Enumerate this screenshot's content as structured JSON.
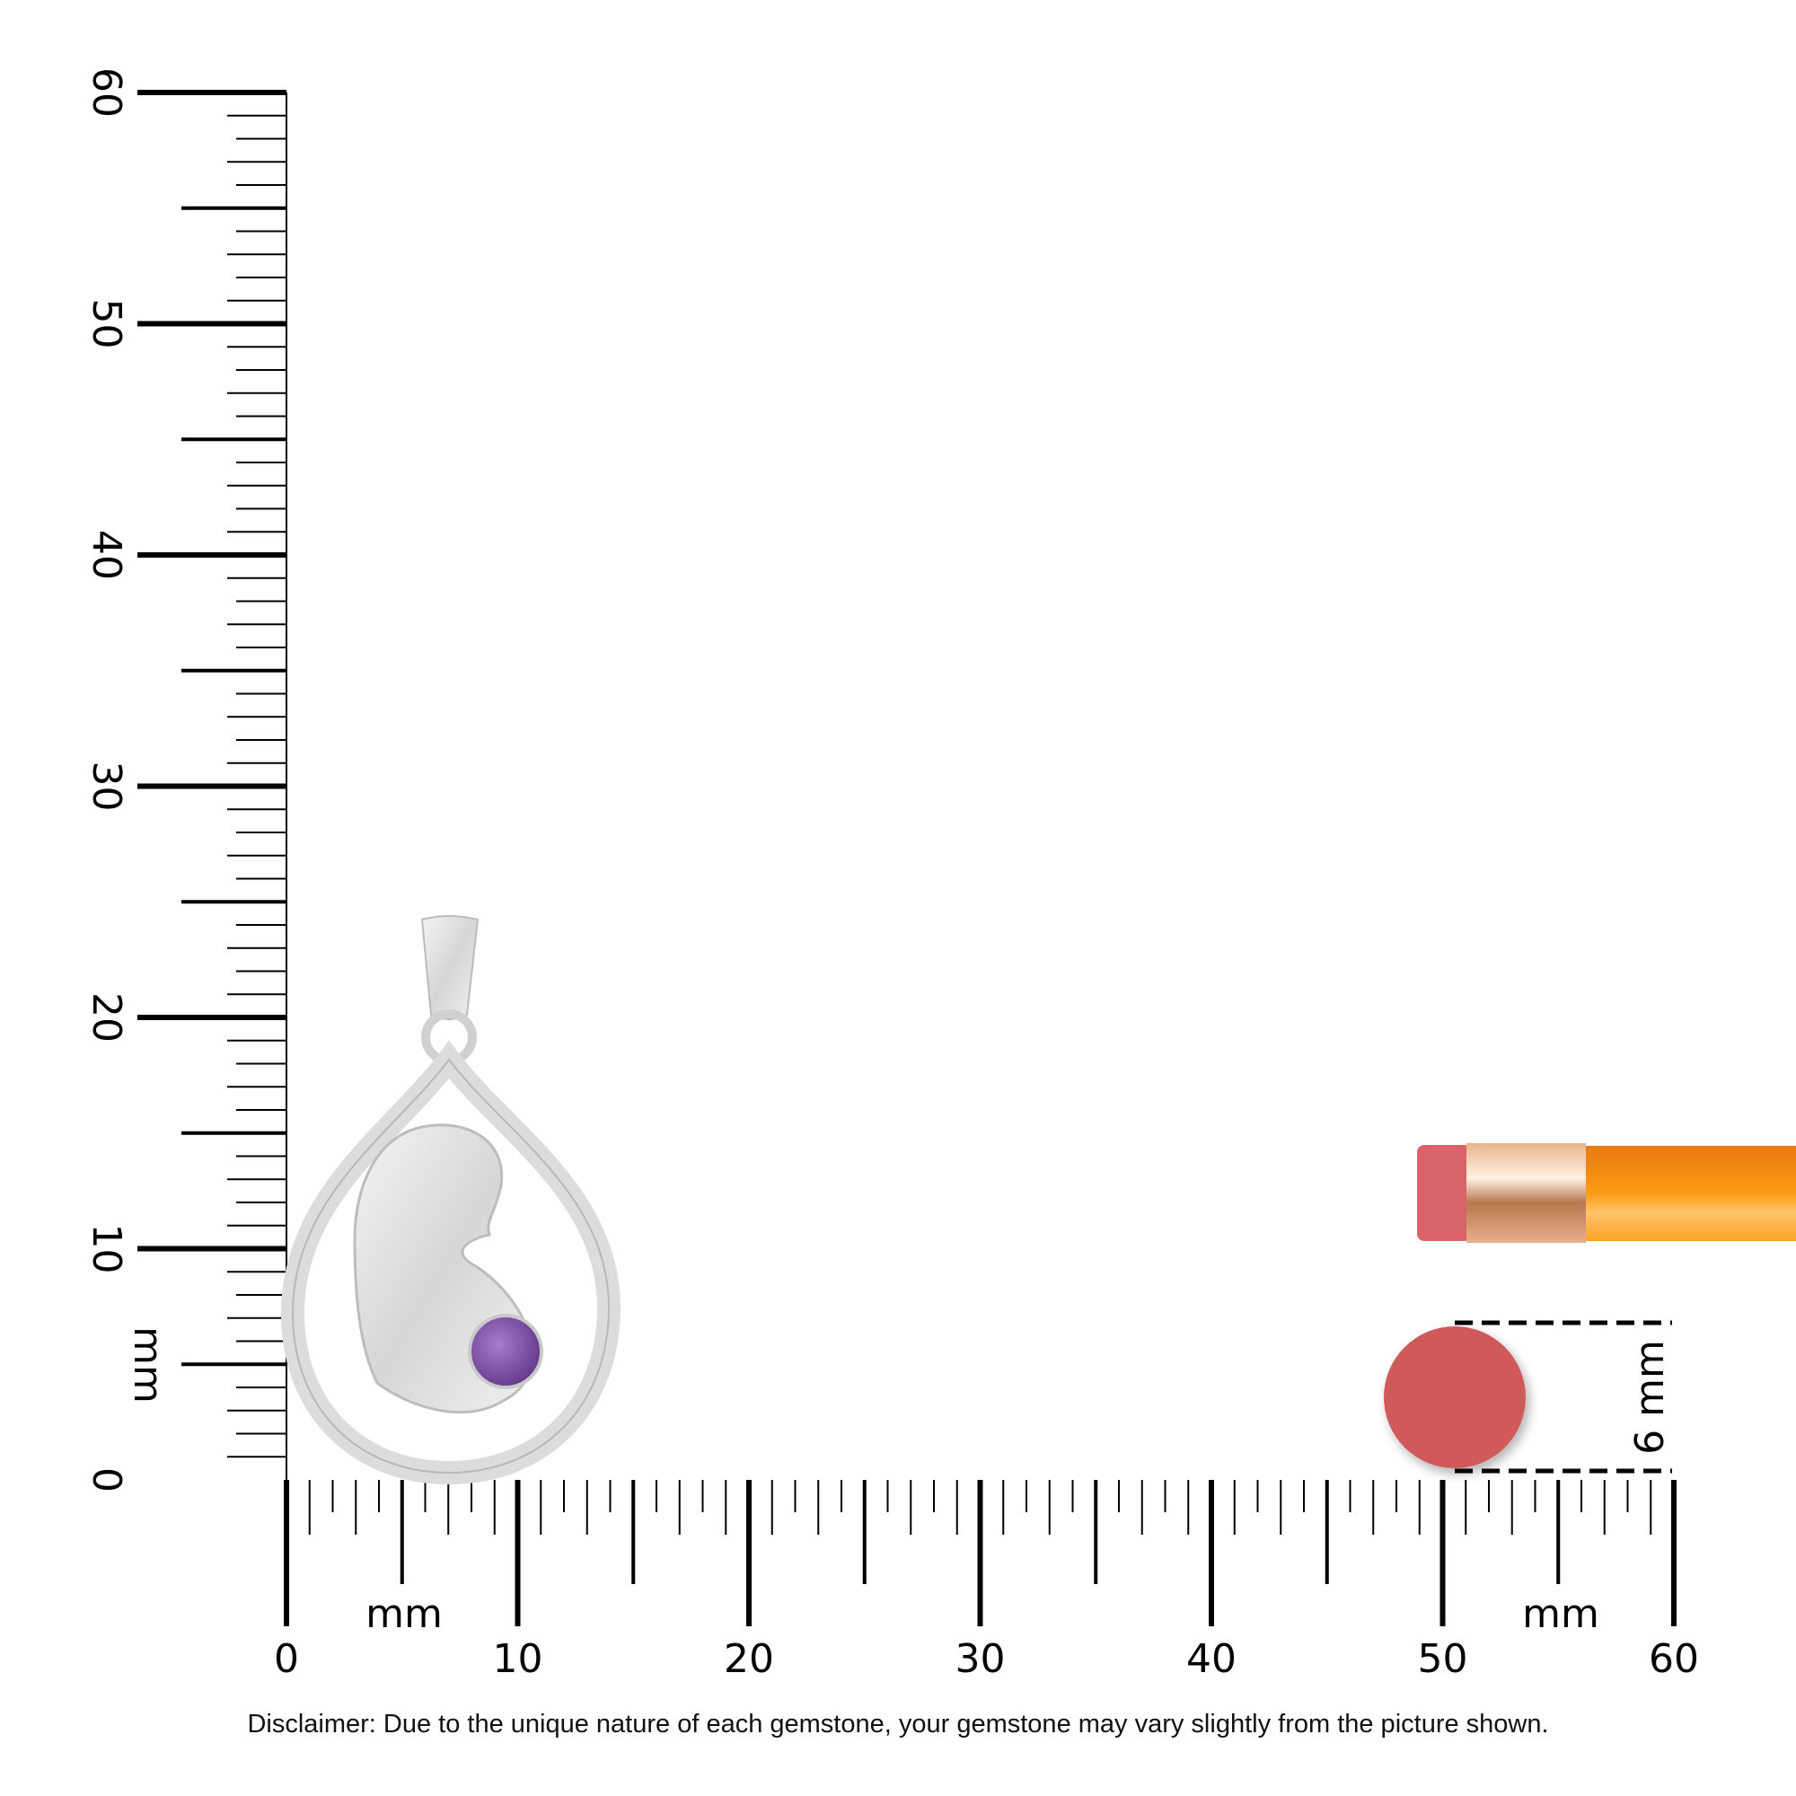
{
  "ruler": {
    "unit_label": "mm",
    "horizontal_labels": [
      "0",
      "10",
      "20",
      "30",
      "40",
      "50",
      "60"
    ],
    "vertical_labels": [
      "0",
      "10",
      "20",
      "30",
      "40",
      "50",
      "60"
    ],
    "range_mm": [
      0,
      60
    ]
  },
  "eraser_annotation": {
    "label": "6 mm",
    "diameter_mm": 6
  },
  "colors": {
    "eraser": "#d05a5a",
    "pencil_body": "#f7920f",
    "ferrule": "#d9a27a",
    "gemstone": "#7e4fa3",
    "metal": "#e2e2e2"
  },
  "disclaimer": "Disclaimer: Due to the unique nature of each gemstone, your gemstone may vary slightly from the picture shown."
}
